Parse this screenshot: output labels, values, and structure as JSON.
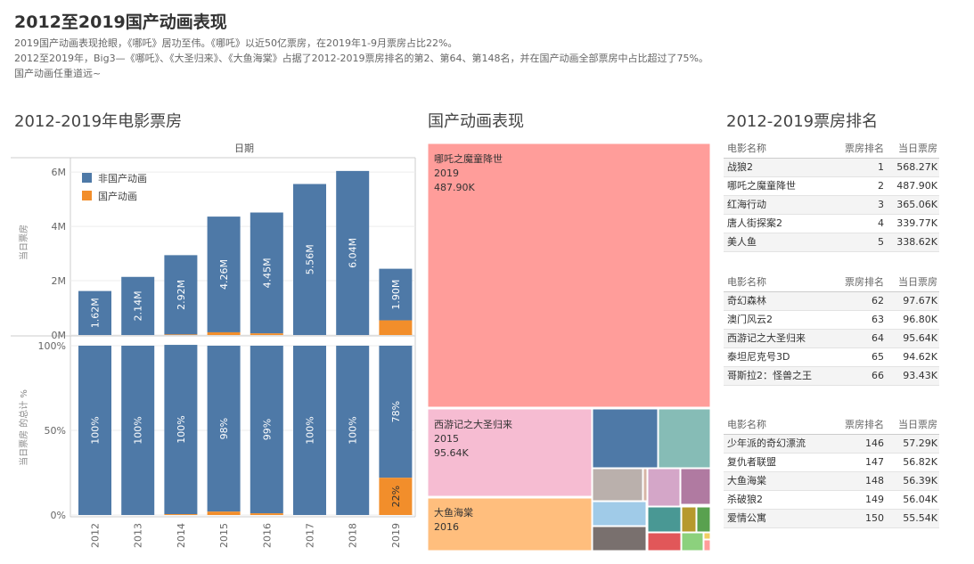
{
  "header": {
    "title": "2012至2019国产动画表现",
    "desc1": "2019国产动画表现抢眼，《哪吒》居功至伟。《哪吒》以近50亿票房，在2019年1-9月票房占比22%。",
    "desc2": "2012至2019年，Big3—《哪吒》、《大圣归来》、《大鱼海棠》占据了2012-2019票房排名的第2、第64、第148名，并在国产动画全部票房中占比超过了75%。",
    "desc3": "国产动画任重道远~"
  },
  "sections": {
    "box_office": "2012-2019年电影票房",
    "animation": "国产动画表现",
    "ranking": "2012-2019票房排名"
  },
  "colors": {
    "non_animation": "#4e79a7",
    "animation": "#f28e2b"
  },
  "chart_data": [
    {
      "type": "bar",
      "stacked": true,
      "title": "日期",
      "ylabel": "当日票房",
      "categories": [
        "2012",
        "2013",
        "2014",
        "2015",
        "2016",
        "2017",
        "2018",
        "2019"
      ],
      "ylim": [
        0,
        6200000
      ],
      "yticks": [
        0,
        2000000,
        4000000,
        6000000
      ],
      "ytick_labels": [
        "0M",
        "2M",
        "4M",
        "6M"
      ],
      "series": [
        {
          "name": "非国产动画",
          "values": [
            1620000,
            2140000,
            2920000,
            4260000,
            4450000,
            5560000,
            6040000,
            1900000
          ],
          "labels": [
            "1.62M",
            "2.14M",
            "2.92M",
            "4.26M",
            "4.45M",
            "5.56M",
            "6.04M",
            "1.90M"
          ]
        },
        {
          "name": "国产动画",
          "values": [
            0,
            0,
            20000,
            100000,
            60000,
            0,
            0,
            540000
          ]
        }
      ],
      "legend": "top-left"
    },
    {
      "type": "bar",
      "stacked": true,
      "ylabel": "当日票房 的总计 %",
      "categories": [
        "2012",
        "2013",
        "2014",
        "2015",
        "2016",
        "2017",
        "2018",
        "2019"
      ],
      "ylim": [
        0,
        100
      ],
      "yticks": [
        0,
        50,
        100
      ],
      "ytick_labels": [
        "0%",
        "50%",
        "100%"
      ],
      "series": [
        {
          "name": "非国产动画",
          "values": [
            100,
            100,
            100,
            98,
            99,
            100,
            100,
            78
          ],
          "labels": [
            "100%",
            "100%",
            "100%",
            "98%",
            "99%",
            "100%",
            "100%",
            "78%"
          ]
        },
        {
          "name": "国产动画",
          "values": [
            0,
            0,
            0.5,
            2,
            1,
            0,
            0,
            22
          ],
          "labels": [
            "",
            "",
            "",
            "",
            "",
            "",
            "",
            "22%"
          ]
        }
      ]
    },
    {
      "type": "treemap",
      "items": [
        {
          "name": "哪吒之魔童降世",
          "year": "2019",
          "value": "487.90K",
          "color": "#ff9d9a"
        },
        {
          "name": "西游记之大圣归来",
          "year": "2015",
          "value": "95.64K",
          "color": "#f6bcd2"
        },
        {
          "name": "大鱼海棠",
          "year": "2016",
          "value": "",
          "color": "#ffbe7d"
        }
      ]
    }
  ],
  "ranking": {
    "headers": [
      "电影名称",
      "票房排名",
      "当日票房"
    ],
    "groups": [
      [
        [
          "战狼2",
          "1",
          "568.27K"
        ],
        [
          "哪吒之魔童降世",
          "2",
          "487.90K"
        ],
        [
          "红海行动",
          "3",
          "365.06K"
        ],
        [
          "唐人街探案2",
          "4",
          "339.77K"
        ],
        [
          "美人鱼",
          "5",
          "338.62K"
        ]
      ],
      [
        [
          "奇幻森林",
          "62",
          "97.67K"
        ],
        [
          "澳门风云2",
          "63",
          "96.80K"
        ],
        [
          "西游记之大圣归来",
          "64",
          "95.64K"
        ],
        [
          "泰坦尼克号3D",
          "65",
          "94.62K"
        ],
        [
          "哥斯拉2：怪兽之王",
          "66",
          "93.43K"
        ]
      ],
      [
        [
          "少年派的奇幻漂流",
          "146",
          "57.29K"
        ],
        [
          "复仇者联盟",
          "147",
          "56.82K"
        ],
        [
          "大鱼海棠",
          "148",
          "56.39K"
        ],
        [
          "杀破狼2",
          "149",
          "56.04K"
        ],
        [
          "爱情公寓",
          "150",
          "55.54K"
        ]
      ]
    ]
  }
}
